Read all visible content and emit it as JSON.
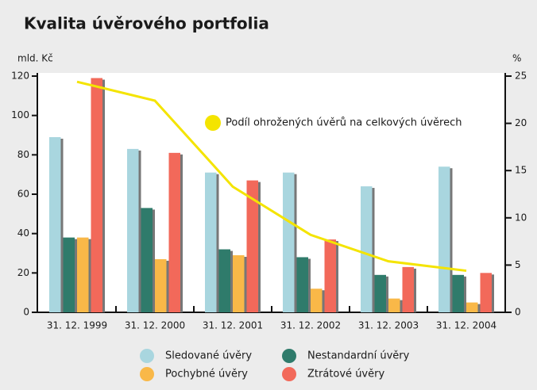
{
  "chart_data": {
    "type": "bar",
    "title": "Kvalita úvěrového portfolia",
    "ylabel": "mld. Kč",
    "y2label": "%",
    "categories": [
      "31. 12. 1999",
      "31. 12. 2000",
      "31. 12. 2001",
      "31. 12. 2002",
      "31. 12. 2003",
      "31. 12. 2004"
    ],
    "series": [
      {
        "name": "Sledované úvěry",
        "color": "#a9d6df",
        "values": [
          89,
          83,
          71,
          71,
          64,
          74
        ]
      },
      {
        "name": "Nestandardní úvěry",
        "color": "#2f7b6b",
        "values": [
          38,
          53,
          32,
          28,
          19,
          19
        ]
      },
      {
        "name": "Pochybné úvěry",
        "color": "#f9b848",
        "values": [
          38,
          27,
          29,
          12,
          7,
          5
        ]
      },
      {
        "name": "Ztrátové úvěry",
        "color": "#f2695a",
        "values": [
          119,
          81,
          67,
          37,
          23,
          20
        ]
      },
      {
        "name": "Podíl ohrožených úvěrů na celkových úvěrech",
        "color": "#f4e400",
        "type": "line",
        "axis": "y2",
        "values": [
          24.4,
          22.4,
          13.3,
          8.2,
          5.4,
          4.4
        ]
      }
    ],
    "ylim": [
      0,
      120
    ],
    "yticks": [
      0,
      20,
      40,
      60,
      80,
      100,
      120
    ],
    "y2lim": [
      0,
      25
    ],
    "y2ticks": [
      0,
      5,
      10,
      15,
      20,
      25
    ]
  }
}
